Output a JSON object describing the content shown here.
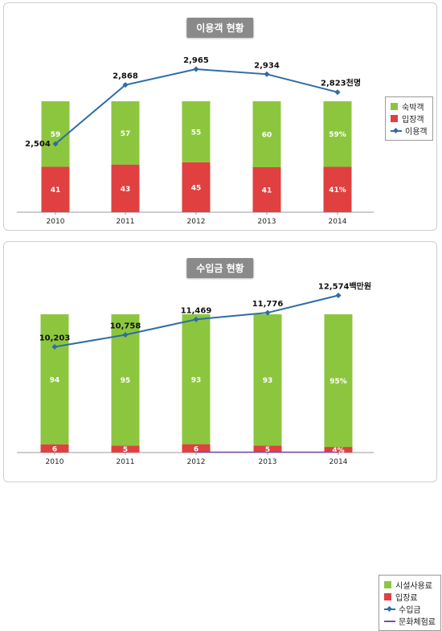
{
  "chart_data": [
    {
      "type": "bar",
      "title": "이용객 현황",
      "categories": [
        "2010",
        "2011",
        "2012",
        "2013",
        "2014"
      ],
      "stacked": true,
      "series": [
        {
          "name": "숙박객",
          "kind": "bar",
          "color": "#8cc63f",
          "values": [
            59,
            57,
            55,
            60,
            59
          ],
          "labels": [
            "59",
            "57",
            "55",
            "60",
            "59%"
          ]
        },
        {
          "name": "입장객",
          "kind": "bar",
          "color": "#e04040",
          "values": [
            41,
            43,
            45,
            41,
            41
          ],
          "labels": [
            "41",
            "43",
            "45",
            "41",
            "41%"
          ]
        },
        {
          "name": "이용객",
          "kind": "line",
          "color": "#2e6da4",
          "values": [
            2504,
            2868,
            2965,
            2934,
            2823
          ],
          "labels": [
            "2,504",
            "2,868",
            "2,965",
            "2,934",
            "2,823천명"
          ]
        }
      ],
      "legend": [
        "숙박객",
        "입장객",
        "이용객"
      ],
      "legend_position": "right"
    },
    {
      "type": "bar",
      "title": "수입금 현황",
      "categories": [
        "2010",
        "2011",
        "2012",
        "2013",
        "2014"
      ],
      "stacked": true,
      "series": [
        {
          "name": "시설사용료",
          "kind": "bar",
          "color": "#8cc63f",
          "values": [
            94,
            95,
            93,
            93,
            95
          ],
          "labels": [
            "94",
            "95",
            "93",
            "93",
            "95%"
          ]
        },
        {
          "name": "입장료",
          "kind": "bar",
          "color": "#e04040",
          "values": [
            6,
            5,
            6,
            5,
            4
          ],
          "labels": [
            "6",
            "5",
            "6",
            "5",
            "4%"
          ]
        },
        {
          "name": "수입금",
          "kind": "line",
          "color": "#2e6da4",
          "values": [
            10203,
            10758,
            11469,
            11776,
            12574
          ],
          "labels": [
            "10,203",
            "10,758",
            "11,469",
            "11,776",
            "12,574백만원"
          ]
        },
        {
          "name": "문화체험료",
          "kind": "line",
          "color": "#7b4ea3",
          "values": [
            null,
            null,
            0,
            0,
            0
          ],
          "labels": []
        }
      ],
      "legend": [
        "시설사용료",
        "입장료",
        "수입금",
        "문화체험료"
      ],
      "legend_position": "right"
    }
  ]
}
